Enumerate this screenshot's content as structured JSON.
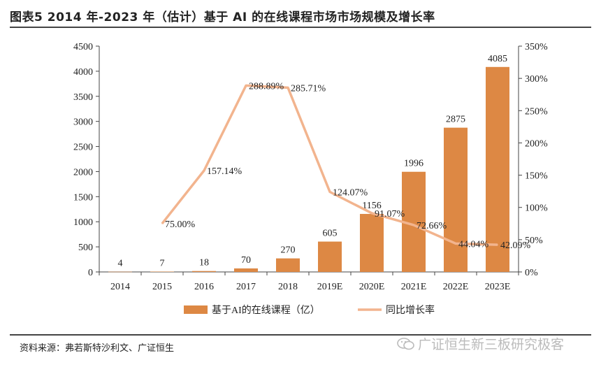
{
  "title": "图表5 2014 年-2023 年（估计）基于 AI 的在线课程市场市场规模及增长率",
  "source": "资料来源：弗若斯特沙利文、广证恒生",
  "watermark": "广证恒生新三板研究极客",
  "colors": {
    "bar": "#dd8844",
    "line": "#f2b48e",
    "axis": "#444444",
    "text": "#222222"
  },
  "chart_data": {
    "type": "bar",
    "categories": [
      "2014",
      "2015",
      "2016",
      "2017",
      "2018",
      "2019E",
      "2020E",
      "2021E",
      "2022E",
      "2023E"
    ],
    "ylim": [
      0,
      4500
    ],
    "y_ticks": [
      "0",
      "500",
      "1000",
      "1500",
      "2000",
      "2500",
      "3000",
      "3500",
      "4000",
      "4500"
    ],
    "y2lim": [
      0,
      350
    ],
    "y2_ticks": [
      "0%",
      "50%",
      "100%",
      "150%",
      "200%",
      "250%",
      "300%",
      "350%"
    ],
    "series": [
      {
        "name": "基于AI的在线课程（亿）",
        "type": "bar",
        "axis": "left",
        "values": [
          4,
          7,
          18,
          70,
          270,
          605,
          1156,
          1996,
          2875,
          4085
        ],
        "labels": [
          "4",
          "7",
          "18",
          "70",
          "270",
          "605",
          "1156",
          "1996",
          "2875",
          "4085"
        ]
      },
      {
        "name": "同比增长率",
        "type": "line",
        "axis": "right",
        "values": [
          null,
          75.0,
          157.14,
          288.89,
          285.71,
          124.07,
          91.07,
          72.66,
          44.04,
          42.09
        ],
        "labels": [
          "",
          "75.00%",
          "157.14%",
          "288.89%",
          "285.71%",
          "124.07%",
          "91.07%",
          "72.66%",
          "44.04%",
          "42.09%"
        ]
      }
    ],
    "legend": "bottom",
    "grid": false
  }
}
